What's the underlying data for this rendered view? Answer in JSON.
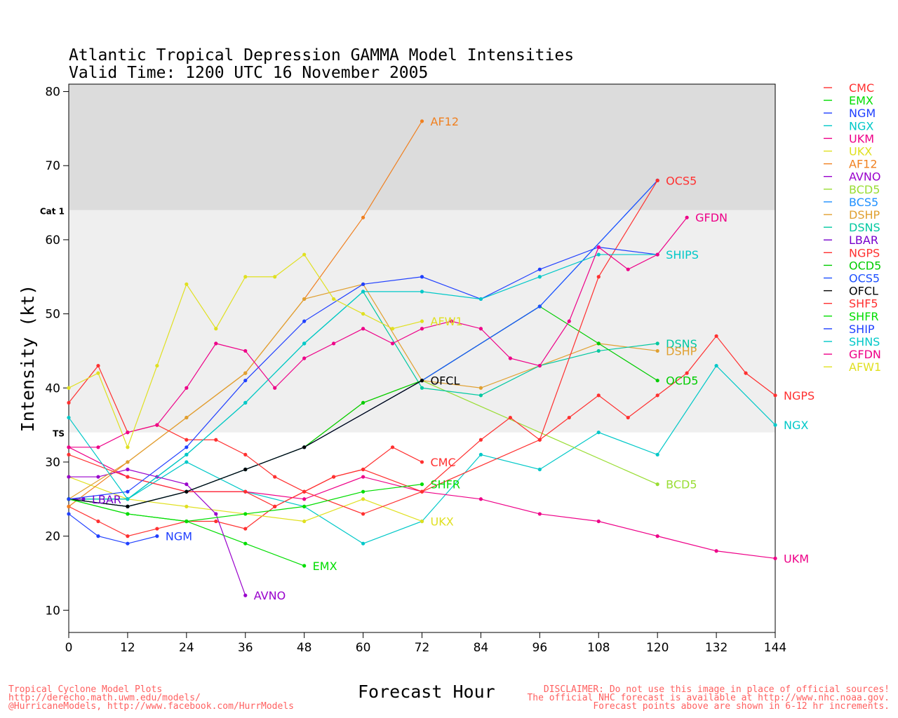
{
  "header": {
    "title_line1": "Atlantic Tropical Depression GAMMA Model Intensities",
    "title_line2": "Valid Time: 1200 UTC 16 November 2005"
  },
  "footer": {
    "left1": "Tropical Cyclone Model Plots",
    "left2": "http://derecho.math.uwm.edu/models/",
    "left3": "@HurricaneModels, http://www.facebook.com/HurrModels",
    "right1": "DISCLAIMER: Do not use this image in place of official sources!",
    "right2": "The official NHC forecast is available at http://www.nhc.noaa.gov.",
    "right3": "Forecast points above are shown in 6-12 hr increments."
  },
  "chart_data": {
    "type": "line",
    "title": "Atlantic Tropical Depression GAMMA Model Intensities",
    "subtitle": "Valid Time: 1200 UTC 16 November 2005",
    "xlabel": "Forecast Hour",
    "ylabel": "Intensity (kt)",
    "xlim": [
      0,
      144
    ],
    "ylim": [
      7,
      81
    ],
    "xticks": [
      0,
      12,
      24,
      36,
      48,
      60,
      72,
      84,
      96,
      108,
      120,
      132,
      144
    ],
    "yticks": [
      10,
      20,
      30,
      40,
      50,
      60,
      70,
      80
    ],
    "bands": [
      {
        "label": "TS",
        "from": 34,
        "to": 64,
        "color": "#efefef"
      },
      {
        "label": "Cat 1",
        "from": 64,
        "to": 81,
        "color": "#dcdcdc"
      }
    ],
    "legend_position": "right",
    "series": [
      {
        "name": "CMC",
        "color": "#ff3030",
        "x": [
          0,
          6,
          12,
          18,
          24,
          30,
          36,
          42,
          48,
          54,
          60,
          66,
          72
        ],
        "y": [
          24,
          22,
          20,
          21,
          22,
          22,
          21,
          24,
          26,
          28,
          29,
          32,
          30
        ]
      },
      {
        "name": "EMX",
        "color": "#00dd00",
        "x": [
          0,
          12,
          24,
          36,
          48
        ],
        "y": [
          25,
          23,
          22,
          19,
          16
        ]
      },
      {
        "name": "NGM",
        "color": "#2040ff",
        "x": [
          0,
          6,
          12,
          18
        ],
        "y": [
          23,
          20,
          19,
          20
        ]
      },
      {
        "name": "NGX",
        "color": "#00c8c8",
        "x": [
          0,
          12,
          24,
          36,
          48,
          60,
          72,
          84,
          96,
          108,
          120,
          132,
          144
        ],
        "y": [
          25,
          25,
          30,
          26,
          24,
          19,
          22,
          31,
          29,
          34,
          31,
          43,
          35
        ]
      },
      {
        "name": "UKM",
        "color": "#ee0088",
        "x": [
          0,
          12,
          24,
          36,
          48,
          60,
          72,
          84,
          96,
          108,
          120,
          132,
          144
        ],
        "y": [
          32,
          28,
          26,
          26,
          25,
          28,
          26,
          25,
          23,
          22,
          20,
          18,
          17
        ]
      },
      {
        "name": "UKX",
        "color": "#e0e020",
        "x": [
          0,
          12,
          24,
          36,
          48,
          60,
          72
        ],
        "y": [
          28,
          25,
          24,
          23,
          22,
          25,
          22
        ]
      },
      {
        "name": "AF12",
        "color": "#f08020",
        "x": [
          0,
          12,
          24,
          36,
          48,
          60,
          72
        ],
        "y": [
          24,
          30,
          36,
          42,
          52,
          63,
          76
        ]
      },
      {
        "name": "AVNO",
        "color": "#9900cc",
        "x": [
          0,
          6,
          12,
          18,
          24,
          30,
          36
        ],
        "y": [
          28,
          28,
          29,
          28,
          27,
          23,
          12
        ]
      },
      {
        "name": "BCD5",
        "color": "#99dd33",
        "x": [
          0,
          12,
          24,
          36,
          48,
          60,
          72,
          120
        ],
        "y": [
          25,
          24,
          26,
          29,
          32,
          38,
          41,
          27
        ]
      },
      {
        "name": "BCS5",
        "color": "#1e90ff",
        "x": [
          0,
          12,
          24,
          36,
          48,
          72,
          96,
          120
        ],
        "y": [
          25,
          24,
          26,
          29,
          32,
          41,
          51,
          68
        ]
      },
      {
        "name": "DSHP",
        "color": "#e0a030",
        "x": [
          0,
          12,
          24,
          36,
          48,
          60,
          72,
          84,
          96,
          108,
          120
        ],
        "y": [
          25,
          30,
          36,
          42,
          52,
          54,
          41,
          40,
          43,
          46,
          45
        ]
      },
      {
        "name": "DSNS",
        "color": "#00c8a0",
        "x": [
          0,
          12,
          24,
          36,
          48,
          60,
          72,
          84,
          96,
          108,
          120
        ],
        "y": [
          25,
          25,
          31,
          38,
          46,
          53,
          40,
          39,
          43,
          45,
          46
        ]
      },
      {
        "name": "LBAR",
        "color": "#7700cc",
        "x": [
          0,
          3
        ],
        "y": [
          25,
          25
        ]
      },
      {
        "name": "NGPS",
        "color": "#ff3030",
        "x": [
          0,
          12,
          24,
          36,
          42,
          48,
          54,
          60,
          72,
          84,
          90,
          96,
          102,
          108,
          114,
          120,
          126,
          132,
          138,
          144
        ],
        "y": [
          31,
          28,
          26,
          26,
          24,
          26,
          28,
          29,
          26,
          33,
          36,
          33,
          36,
          39,
          36,
          39,
          42,
          47,
          42,
          39
        ]
      },
      {
        "name": "OCD5",
        "color": "#00cc00",
        "x": [
          0,
          12,
          24,
          36,
          48,
          60,
          72,
          96,
          108,
          120
        ],
        "y": [
          25,
          24,
          26,
          29,
          32,
          38,
          41,
          51,
          46,
          41
        ]
      },
      {
        "name": "OCS5",
        "color": "#1e50ff",
        "x": [
          0,
          12,
          24,
          36,
          48,
          72,
          96,
          120
        ],
        "y": [
          25,
          24,
          26,
          29,
          32,
          41,
          51,
          68
        ]
      },
      {
        "name": "OFCL",
        "color": "#000000",
        "x": [
          0,
          12,
          24,
          36,
          48,
          72
        ],
        "y": [
          25,
          24,
          26,
          29,
          32,
          41
        ]
      },
      {
        "name": "SHF5",
        "color": "#ff3030",
        "x": [
          0,
          6,
          12,
          18,
          24,
          30,
          36,
          42,
          48,
          60,
          72,
          96,
          108,
          120
        ],
        "y": [
          38,
          43,
          34,
          35,
          33,
          33,
          31,
          28,
          26,
          23,
          26,
          33,
          55,
          68
        ]
      },
      {
        "name": "SHFR",
        "color": "#00dd00",
        "x": [
          0,
          12,
          24,
          36,
          48,
          60,
          72
        ],
        "y": [
          25,
          23,
          22,
          23,
          24,
          26,
          27
        ]
      },
      {
        "name": "SHIP",
        "color": "#2040ff",
        "x": [
          0,
          12,
          24,
          36,
          48,
          60,
          72,
          84,
          96,
          108,
          120
        ],
        "y": [
          25,
          26,
          32,
          41,
          49,
          54,
          55,
          52,
          56,
          59,
          58
        ]
      },
      {
        "name": "SHNS",
        "color": "#00c8c8",
        "x": [
          0,
          12,
          24,
          36,
          48,
          60,
          72,
          84,
          96,
          108,
          120
        ],
        "y": [
          36,
          25,
          31,
          38,
          46,
          53,
          53,
          52,
          55,
          58,
          58
        ]
      },
      {
        "name": "GFDN",
        "color": "#ee0088",
        "x": [
          0,
          6,
          12,
          18,
          24,
          30,
          36,
          42,
          48,
          54,
          60,
          66,
          72,
          78,
          84,
          90,
          96,
          102,
          108,
          114,
          120,
          126
        ],
        "y": [
          32,
          32,
          34,
          35,
          40,
          46,
          45,
          40,
          44,
          46,
          48,
          46,
          48,
          49,
          48,
          44,
          43,
          49,
          59,
          56,
          58,
          63
        ]
      },
      {
        "name": "AFW1",
        "color": "#e0e020",
        "x": [
          0,
          6,
          12,
          18,
          24,
          30,
          36,
          42,
          48,
          54,
          60,
          66,
          72
        ],
        "y": [
          40,
          42,
          32,
          43,
          54,
          48,
          55,
          55,
          58,
          52,
          50,
          48,
          49
        ]
      }
    ],
    "end_labels": [
      {
        "text": "AF12",
        "series": "AF12",
        "color": "#f08020"
      },
      {
        "text": "OCS5",
        "series": "OCS5",
        "color": "#ff3030"
      },
      {
        "text": "GFDN",
        "series": "GFDN",
        "color": "#ee0088"
      },
      {
        "text": "SHIPS",
        "series": "SHIP",
        "color": "#00c8c8"
      },
      {
        "text": "AFW1",
        "series": "AFW1",
        "color": "#e0e020"
      },
      {
        "text": "DSNS",
        "series": "DSNS",
        "color": "#00c8a0"
      },
      {
        "text": "DSHP",
        "series": "DSHP",
        "color": "#e0a030"
      },
      {
        "text": "OCD5",
        "series": "OCD5",
        "color": "#00cc00"
      },
      {
        "text": "NGPS",
        "series": "NGPS",
        "color": "#ff3030"
      },
      {
        "text": "NGX",
        "series": "NGX",
        "color": "#00c8c8"
      },
      {
        "text": "CMC",
        "series": "CMC",
        "color": "#ff3030"
      },
      {
        "text": "SHFR",
        "series": "SHFR",
        "color": "#00dd00"
      },
      {
        "text": "BCD5",
        "series": "BCD5",
        "color": "#99dd33"
      },
      {
        "text": "UKX",
        "series": "UKX",
        "color": "#e0e020"
      },
      {
        "text": "NGM",
        "series": "NGM",
        "color": "#2040ff"
      },
      {
        "text": "EMX",
        "series": "EMX",
        "color": "#00dd00"
      },
      {
        "text": "AVNO",
        "series": "AVNO",
        "color": "#9900cc"
      },
      {
        "text": "UKM",
        "series": "UKM",
        "color": "#ee0088"
      },
      {
        "text": "LBAR",
        "series": "LBAR",
        "color": "#7700cc"
      },
      {
        "text": "OFCL",
        "series": "OFCL",
        "color": "#000000"
      }
    ]
  }
}
